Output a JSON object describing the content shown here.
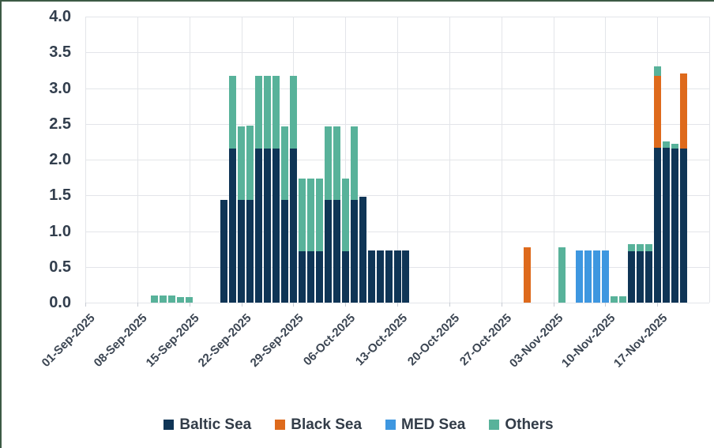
{
  "chart_data": {
    "type": "bar",
    "stacked": true,
    "title": "",
    "xlabel": "",
    "ylabel": "",
    "ylim": [
      0,
      4
    ],
    "y_tick_step": 0.5,
    "y_tick_labels": [
      "0.0",
      "0.5",
      "1.0",
      "1.5",
      "2.0",
      "2.5",
      "3.0",
      "3.5",
      "4.0"
    ],
    "grid": true,
    "legend_position": "bottom-center",
    "series": [
      {
        "key": "baltic",
        "label": "Baltic Sea",
        "color": "#0f3556"
      },
      {
        "key": "black",
        "label": "Black Sea",
        "color": "#de6a1c"
      },
      {
        "key": "med",
        "label": "MED Sea",
        "color": "#3e97e0"
      },
      {
        "key": "others",
        "label": "Others",
        "color": "#58b29a"
      }
    ],
    "x_axis": {
      "first_date": "01-Sep-2025",
      "slots_per_week": 6,
      "total_slots": 72,
      "tick_labels": [
        {
          "slot": 0,
          "label": "01-Sep-2025"
        },
        {
          "slot": 6,
          "label": "08-Sep-2025"
        },
        {
          "slot": 12,
          "label": "15-Sep-2025"
        },
        {
          "slot": 18,
          "label": "22-Sep-2025"
        },
        {
          "slot": 24,
          "label": "29-Sep-2025"
        },
        {
          "slot": 30,
          "label": "06-Oct-2025"
        },
        {
          "slot": 36,
          "label": "13-Oct-2025"
        },
        {
          "slot": 42,
          "label": "20-Oct-2025"
        },
        {
          "slot": 48,
          "label": "27-Oct-2025"
        },
        {
          "slot": 54,
          "label": "03-Nov-2025"
        },
        {
          "slot": 60,
          "label": "10-Nov-2025"
        },
        {
          "slot": 66,
          "label": "17-Nov-2025"
        }
      ]
    },
    "points": [
      {
        "date": "10-Sep-2025",
        "slot": 8,
        "segments": {
          "others": 0.1
        }
      },
      {
        "date": "11-Sep-2025",
        "slot": 9,
        "segments": {
          "others": 0.1
        }
      },
      {
        "date": "12-Sep-2025",
        "slot": 10,
        "segments": {
          "others": 0.1
        }
      },
      {
        "date": "13-Sep-2025",
        "slot": 11,
        "segments": {
          "others": 0.08
        }
      },
      {
        "date": "15-Sep-2025",
        "slot": 12,
        "segments": {
          "others": 0.08
        }
      },
      {
        "date": "19-Sep-2025",
        "slot": 16,
        "segments": {
          "baltic": 1.44
        }
      },
      {
        "date": "20-Sep-2025",
        "slot": 17,
        "segments": {
          "baltic": 2.15,
          "others": 1.02
        }
      },
      {
        "date": "22-Sep-2025",
        "slot": 18,
        "segments": {
          "baltic": 1.44,
          "others": 1.02
        }
      },
      {
        "date": "23-Sep-2025",
        "slot": 19,
        "segments": {
          "baltic": 1.44,
          "others": 1.04
        }
      },
      {
        "date": "24-Sep-2025",
        "slot": 20,
        "segments": {
          "baltic": 2.15,
          "others": 1.02
        }
      },
      {
        "date": "25-Sep-2025",
        "slot": 21,
        "segments": {
          "baltic": 2.15,
          "others": 1.02
        }
      },
      {
        "date": "26-Sep-2025",
        "slot": 22,
        "segments": {
          "baltic": 2.15,
          "others": 1.02
        }
      },
      {
        "date": "27-Sep-2025",
        "slot": 23,
        "segments": {
          "baltic": 1.44,
          "others": 1.02
        }
      },
      {
        "date": "29-Sep-2025",
        "slot": 24,
        "segments": {
          "baltic": 2.15,
          "others": 1.02
        }
      },
      {
        "date": "30-Sep-2025",
        "slot": 25,
        "segments": {
          "baltic": 0.72,
          "others": 1.02
        }
      },
      {
        "date": "01-Oct-2025",
        "slot": 26,
        "segments": {
          "baltic": 0.72,
          "others": 1.02
        }
      },
      {
        "date": "02-Oct-2025",
        "slot": 27,
        "segments": {
          "baltic": 0.72,
          "others": 1.02
        }
      },
      {
        "date": "03-Oct-2025",
        "slot": 28,
        "segments": {
          "baltic": 1.44,
          "others": 1.02
        }
      },
      {
        "date": "04-Oct-2025",
        "slot": 29,
        "segments": {
          "baltic": 1.44,
          "others": 1.02
        }
      },
      {
        "date": "06-Oct-2025",
        "slot": 30,
        "segments": {
          "baltic": 0.72,
          "others": 1.02
        }
      },
      {
        "date": "07-Oct-2025",
        "slot": 31,
        "segments": {
          "baltic": 1.44,
          "others": 1.02
        }
      },
      {
        "date": "08-Oct-2025",
        "slot": 32,
        "segments": {
          "baltic": 1.48
        }
      },
      {
        "date": "09-Oct-2025",
        "slot": 33,
        "segments": {
          "baltic": 0.73
        }
      },
      {
        "date": "10-Oct-2025",
        "slot": 34,
        "segments": {
          "baltic": 0.73
        }
      },
      {
        "date": "11-Oct-2025",
        "slot": 35,
        "segments": {
          "baltic": 0.73
        }
      },
      {
        "date": "13-Oct-2025",
        "slot": 36,
        "segments": {
          "baltic": 0.73
        }
      },
      {
        "date": "14-Oct-2025",
        "slot": 37,
        "segments": {
          "baltic": 0.73
        }
      },
      {
        "date": "30-Oct-2025",
        "slot": 51,
        "segments": {
          "black": 0.77
        }
      },
      {
        "date": "04-Nov-2025",
        "slot": 55,
        "segments": {
          "others": 0.77
        }
      },
      {
        "date": "06-Nov-2025",
        "slot": 57,
        "segments": {
          "med": 0.73
        }
      },
      {
        "date": "07-Nov-2025",
        "slot": 58,
        "segments": {
          "med": 0.73
        }
      },
      {
        "date": "08-Nov-2025",
        "slot": 59,
        "segments": {
          "med": 0.73
        }
      },
      {
        "date": "10-Nov-2025",
        "slot": 60,
        "segments": {
          "med": 0.73
        }
      },
      {
        "date": "11-Nov-2025",
        "slot": 61,
        "segments": {
          "others": 0.09
        }
      },
      {
        "date": "12-Nov-2025",
        "slot": 62,
        "segments": {
          "others": 0.09
        }
      },
      {
        "date": "13-Nov-2025",
        "slot": 63,
        "segments": {
          "baltic": 0.72,
          "others": 0.1
        }
      },
      {
        "date": "14-Nov-2025",
        "slot": 64,
        "segments": {
          "baltic": 0.72,
          "others": 0.1
        }
      },
      {
        "date": "15-Nov-2025",
        "slot": 65,
        "segments": {
          "baltic": 0.72,
          "others": 0.1
        }
      },
      {
        "date": "17-Nov-2025",
        "slot": 66,
        "segments": {
          "baltic": 2.17,
          "black": 1.0,
          "others": 0.13
        }
      },
      {
        "date": "18-Nov-2025",
        "slot": 67,
        "segments": {
          "baltic": 2.17,
          "others": 0.08
        }
      },
      {
        "date": "19-Nov-2025",
        "slot": 68,
        "segments": {
          "baltic": 2.15,
          "others": 0.07
        }
      },
      {
        "date": "20-Nov-2025",
        "slot": 69,
        "segments": {
          "baltic": 2.15,
          "black": 1.05
        }
      }
    ]
  },
  "legend": {
    "items": [
      {
        "label": "Baltic Sea",
        "color": "#0f3556"
      },
      {
        "label": "Black Sea",
        "color": "#de6a1c"
      },
      {
        "label": "MED Sea",
        "color": "#3e97e0"
      },
      {
        "label": "Others",
        "color": "#58b29a"
      }
    ]
  }
}
